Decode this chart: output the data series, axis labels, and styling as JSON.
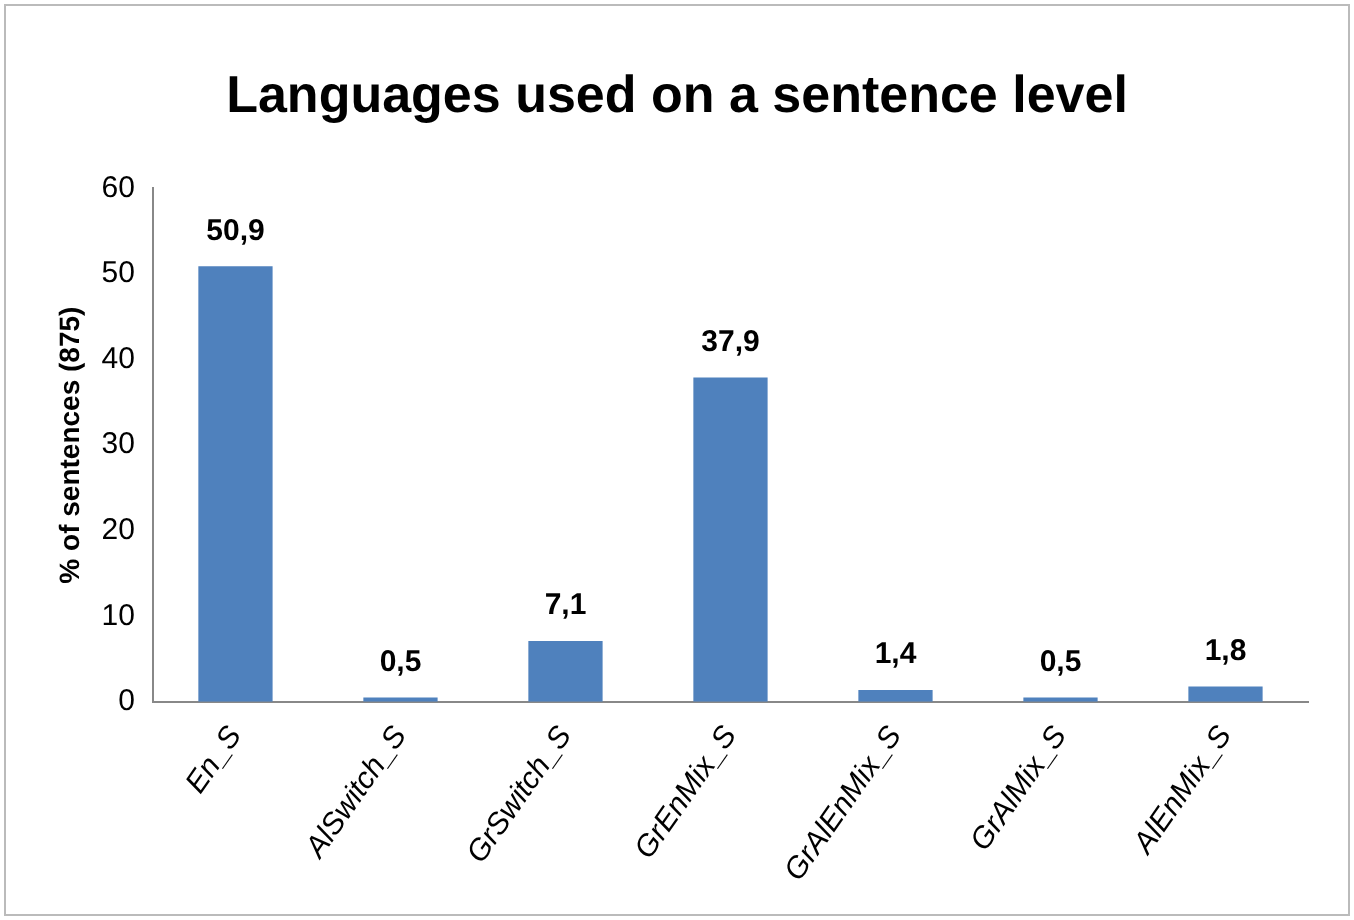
{
  "chart_data": {
    "type": "bar",
    "title": "Languages used on a sentence level",
    "ylabel": "% of sentences (875)",
    "categories": [
      "En_S",
      "AlSwitch_S",
      "GrSwitch_S",
      "GrEnMix_S",
      "GrAlEnMix_S",
      "GrAlMix_S",
      "AlEnMix_S"
    ],
    "values": [
      50.9,
      0.5,
      7.1,
      37.9,
      1.4,
      0.5,
      1.8
    ],
    "value_labels": [
      "50,9",
      "0,5",
      "7,1",
      "37,9",
      "1,4",
      "0,5",
      "1,8"
    ],
    "color": "#4f81bd",
    "ylim": [
      0,
      60
    ],
    "yticks": [
      0,
      10,
      20,
      30,
      40,
      50,
      60
    ],
    "grid": false,
    "legend": false
  }
}
